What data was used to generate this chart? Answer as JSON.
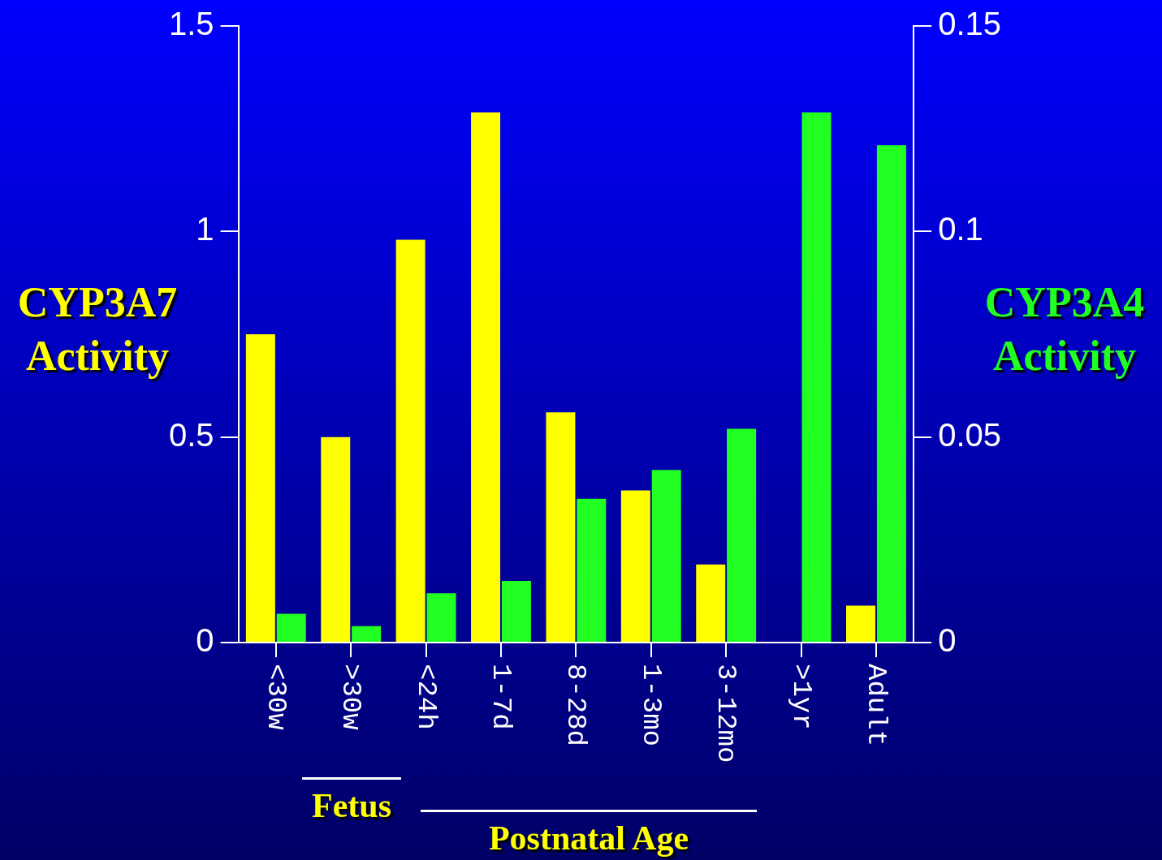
{
  "chart_data": {
    "type": "bar",
    "ylabel": "CYP3A7 Activity",
    "y2label": "CYP3A4 Activity",
    "categories": [
      "<30w",
      ">30w",
      "<24h",
      "1-7d",
      "8-28d",
      "1-3mo",
      "3-12mo",
      ">1yr",
      "Adult"
    ],
    "series": [
      {
        "name": null,
        "color": "#ffff00",
        "values": [
          0.75,
          0.5,
          0.98,
          1.29,
          0.56,
          0.37,
          0.19,
          null,
          0.09
        ]
      },
      {
        "name": null,
        "color": "#22ff22",
        "axis": "y2",
        "values": [
          0.007,
          0.004,
          0.012,
          0.015,
          0.035,
          0.042,
          0.052,
          0.129,
          0.121
        ]
      }
    ],
    "ylim": [
      0,
      1.5
    ],
    "yticks": [
      0,
      0.5,
      1,
      1.5
    ],
    "y2lim": [
      0,
      0.15
    ],
    "y2ticks": [
      0,
      0.05,
      0.1,
      0.15
    ],
    "grid": false,
    "legend": false,
    "annotations": [
      "Fetus",
      "Postnatal Age"
    ]
  }
}
